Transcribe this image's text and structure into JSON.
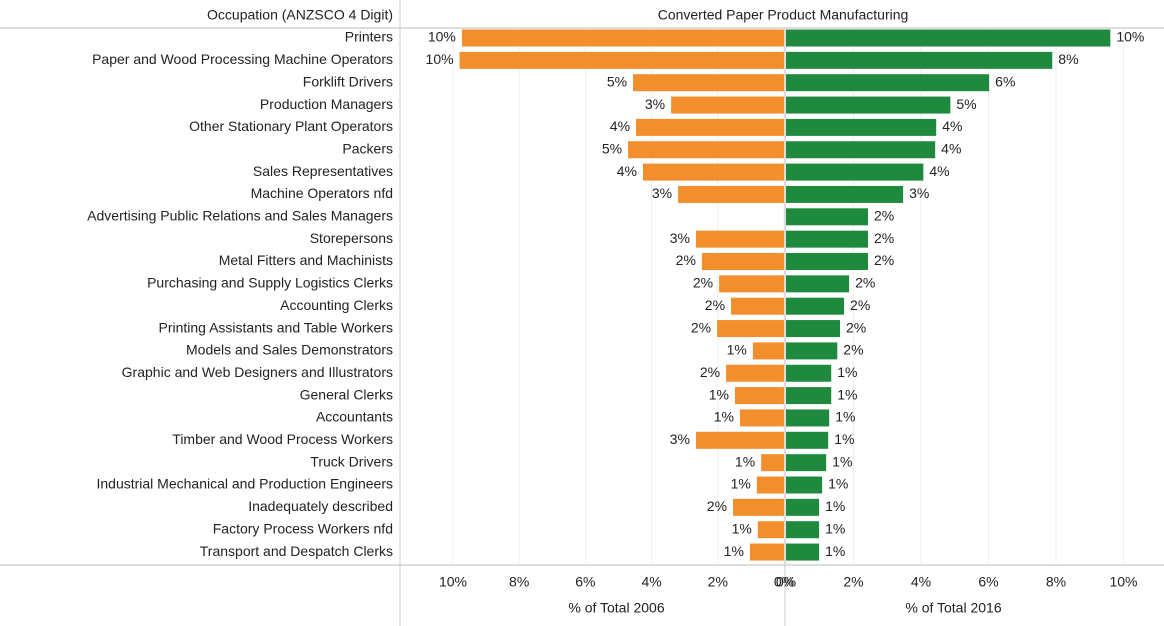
{
  "chart_data": {
    "type": "butterfly",
    "header": "Occupation (ANZSCO 4 Digit)",
    "title": "Converted Paper Product Manufacturing",
    "categories": [
      "Printers",
      "Paper and Wood Processing Machine Operators",
      "Forklift Drivers",
      "Production Managers",
      "Other Stationary Plant Operators",
      "Packers",
      "Sales Representatives",
      "Machine Operators nfd",
      "Advertising Public Relations and Sales Managers",
      "Storepersons",
      "Metal Fitters and Machinists",
      "Purchasing and Supply Logistics Clerks",
      "Accounting Clerks",
      "Printing Assistants and Table Workers",
      "Models and Sales Demonstrators",
      "Graphic and Web Designers and Illustrators",
      "General Clerks",
      "Accountants",
      "Timber and Wood Process Workers",
      "Truck Drivers",
      "Industrial Mechanical and Production Engineers",
      "Inadequately described",
      "Factory Process Workers nfd",
      "Transport and Despatch Clerks"
    ],
    "grid": true,
    "series": [
      {
        "name": "% of Total 2006",
        "color": "#f28e2b",
        "side": "left",
        "xlim": [
          0,
          11.6
        ],
        "xticks": [
          {
            "value": 10,
            "label": "10%"
          },
          {
            "value": 8,
            "label": "8%"
          },
          {
            "value": 6,
            "label": "6%"
          },
          {
            "value": 4,
            "label": "4%"
          },
          {
            "value": 2,
            "label": "2%"
          },
          {
            "value": 0,
            "label": "0%"
          }
        ],
        "values": [
          9.73,
          9.8,
          4.56,
          3.41,
          4.47,
          4.71,
          4.26,
          3.2,
          null,
          2.66,
          2.48,
          1.96,
          1.6,
          2.02,
          0.94,
          1.75,
          1.48,
          1.33,
          2.66,
          0.69,
          0.82,
          1.54,
          0.79,
          1.03
        ],
        "value_labels": [
          "10%",
          "10%",
          "5%",
          "3%",
          "4%",
          "5%",
          "4%",
          "3%",
          null,
          "3%",
          "2%",
          "2%",
          "2%",
          "2%",
          "1%",
          "2%",
          "1%",
          "1%",
          "3%",
          "1%",
          "1%",
          "2%",
          "1%",
          "1%"
        ]
      },
      {
        "name": "% of Total 2016",
        "color": "#1f8a3e",
        "side": "right",
        "xlim": [
          0,
          11.2
        ],
        "xticks": [
          {
            "value": 0,
            "label": "0%"
          },
          {
            "value": 2,
            "label": "2%"
          },
          {
            "value": 4,
            "label": "4%"
          },
          {
            "value": 6,
            "label": "6%"
          },
          {
            "value": 8,
            "label": "8%"
          },
          {
            "value": 10,
            "label": "10%"
          }
        ],
        "values": [
          9.61,
          7.89,
          6.02,
          4.87,
          4.45,
          4.42,
          4.07,
          3.47,
          2.43,
          2.43,
          2.43,
          1.87,
          1.72,
          1.6,
          1.52,
          1.34,
          1.34,
          1.28,
          1.25,
          1.19,
          1.07,
          0.98,
          0.98,
          0.98
        ],
        "value_labels": [
          "10%",
          "8%",
          "6%",
          "5%",
          "4%",
          "4%",
          "4%",
          "3%",
          "2%",
          "2%",
          "2%",
          "2%",
          "2%",
          "2%",
          "2%",
          "1%",
          "1%",
          "1%",
          "1%",
          "1%",
          "1%",
          "1%",
          "1%",
          "1%"
        ]
      }
    ]
  }
}
